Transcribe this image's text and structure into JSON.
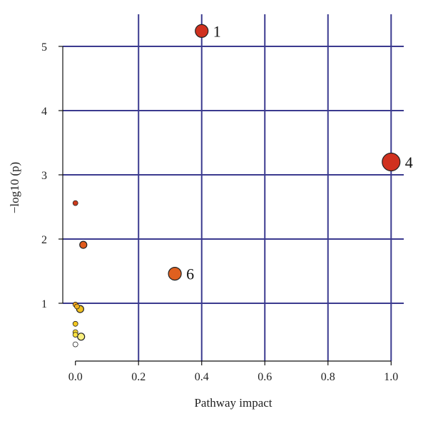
{
  "chart_data": {
    "type": "scatter",
    "title": "",
    "xlabel": "Pathway impact",
    "ylabel": "−log10 (p)",
    "xlim": [
      -0.04,
      1.04
    ],
    "ylim": [
      0.1,
      5.5
    ],
    "grid": true,
    "xticks": [
      "0.0",
      "0.2",
      "0.4",
      "0.6",
      "0.8",
      "1.0"
    ],
    "xtick_values": [
      0.0,
      0.2,
      0.4,
      0.6,
      0.8,
      1.0
    ],
    "yticks": [
      "1",
      "2",
      "3",
      "4",
      "5"
    ],
    "ytick_values": [
      1,
      2,
      3,
      4,
      5
    ],
    "colors": {
      "grid": "#3b3a8f",
      "axis": "#111111"
    },
    "points": [
      {
        "x": 0.4,
        "y": 5.24,
        "size": "medium",
        "color": "#d0311f",
        "label": "1"
      },
      {
        "x": 1.0,
        "y": 3.2,
        "size": "large",
        "color": "#d0311f",
        "label": "4"
      },
      {
        "x": 0.315,
        "y": 1.46,
        "size": "medium",
        "color": "#e0601f",
        "label": "6"
      },
      {
        "x": 0.0,
        "y": 2.56,
        "size": "tiny",
        "color": "#cc3a1c",
        "label": ""
      },
      {
        "x": 0.025,
        "y": 1.91,
        "size": "small",
        "color": "#e05a1c",
        "label": ""
      },
      {
        "x": 0.0,
        "y": 0.98,
        "size": "tiny",
        "color": "#f0a020",
        "label": ""
      },
      {
        "x": 0.005,
        "y": 0.95,
        "size": "tiny",
        "color": "#f0b020",
        "label": ""
      },
      {
        "x": 0.015,
        "y": 0.91,
        "size": "small",
        "color": "#f0c020",
        "label": ""
      },
      {
        "x": 0.0,
        "y": 0.68,
        "size": "tiny",
        "color": "#f5c820",
        "label": ""
      },
      {
        "x": 0.0,
        "y": 0.55,
        "size": "tiny",
        "color": "#f8d830",
        "label": ""
      },
      {
        "x": 0.0,
        "y": 0.51,
        "size": "tiny",
        "color": "#f8e040",
        "label": ""
      },
      {
        "x": 0.018,
        "y": 0.48,
        "size": "small",
        "color": "#faf080",
        "label": ""
      },
      {
        "x": 0.0,
        "y": 0.36,
        "size": "tiny",
        "color": "#ffffff",
        "label": ""
      }
    ]
  }
}
